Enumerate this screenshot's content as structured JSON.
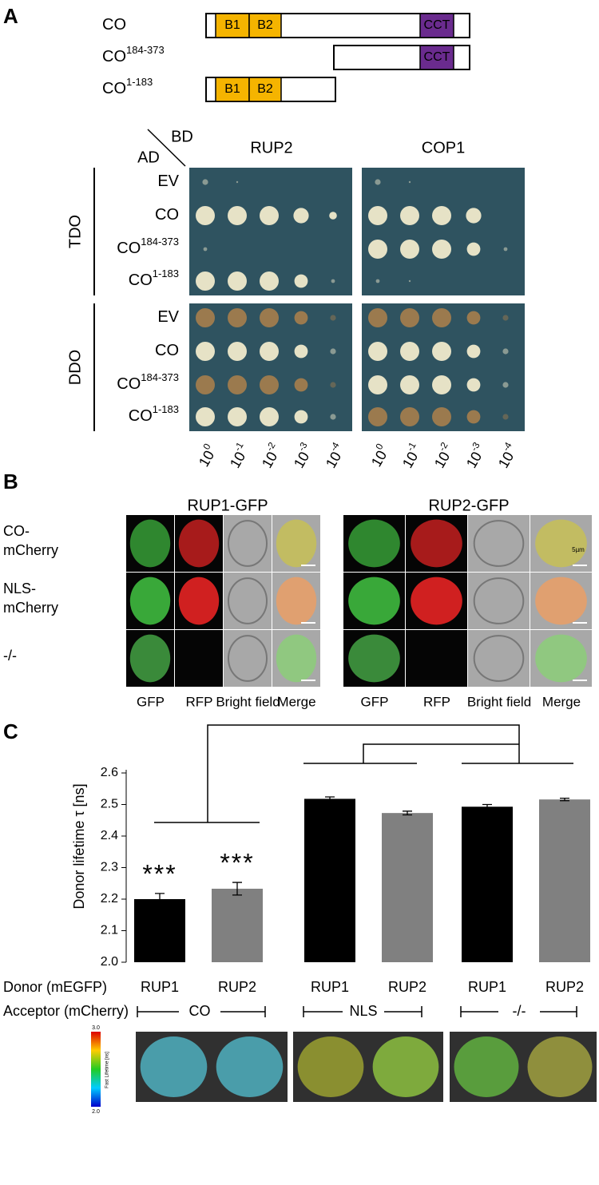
{
  "panel_labels": [
    "A",
    "B",
    "C"
  ],
  "panel_a": {
    "constructs": [
      {
        "base": "CO",
        "domains": [
          "B1",
          "B2",
          "CCT"
        ]
      },
      {
        "base": "CO",
        "sup": "184-373",
        "domains": [
          "CCT"
        ]
      },
      {
        "base": "CO",
        "sup": "1-183",
        "domains": [
          "B1",
          "B2"
        ]
      }
    ],
    "bd_label": "BD",
    "ad_label": "AD",
    "baits": [
      "RUP2",
      "COP1"
    ],
    "media": [
      "TDO",
      "DDO"
    ],
    "preys": [
      {
        "base": "EV"
      },
      {
        "base": "CO"
      },
      {
        "base": "CO",
        "sup": "184-373"
      },
      {
        "base": "CO",
        "sup": "1-183"
      }
    ],
    "dilutions": [
      {
        "base": "10",
        "exp": "0"
      },
      {
        "base": "10",
        "exp": "-1"
      },
      {
        "base": "10",
        "exp": "-2"
      },
      {
        "base": "10",
        "exp": "-3"
      },
      {
        "base": "10",
        "exp": "-4"
      }
    ]
  },
  "panel_b": {
    "fusions": [
      "RUP1-GFP",
      "RUP2-GFP"
    ],
    "rows": [
      [
        "CO-",
        "mCherry"
      ],
      [
        "NLS-",
        "mCherry"
      ],
      [
        "-/-"
      ]
    ],
    "channels": [
      "GFP",
      "RFP",
      "Bright field",
      "Merge"
    ],
    "scale_label": "5µm"
  },
  "chart_data": {
    "type": "bar",
    "y_label": "Donor lifetime τ [ns]",
    "row_labels": [
      "Donor (mEGFP)",
      "Acceptor (mCherry)"
    ],
    "categories": [
      "RUP1",
      "RUP2",
      "RUP1",
      "RUP2",
      "RUP1",
      "RUP2"
    ],
    "groups": [
      "CO",
      "NLS",
      "-/-"
    ],
    "values": [
      2.2,
      2.233,
      2.518,
      2.473,
      2.493,
      2.516
    ],
    "errors": [
      0.018,
      0.02,
      0.006,
      0.006,
      0.007,
      0.004
    ],
    "colors": [
      "#000000",
      "#808080",
      "#000000",
      "#808080",
      "#000000",
      "#808080"
    ],
    "annotations": [
      "***",
      "***"
    ],
    "ylim": [
      2.0,
      2.6
    ],
    "yticks": [
      {
        "value": 2,
        "label": "2.0"
      },
      2.1,
      2.2,
      2.3,
      2.4,
      2.5,
      2.6
    ],
    "colorbar": {
      "max": "3.0",
      "min": "2.0",
      "label": "Fast Lifetime [ns]"
    }
  }
}
